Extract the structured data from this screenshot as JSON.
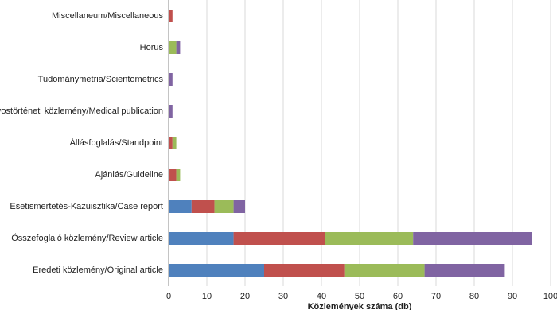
{
  "chart_data": {
    "type": "stacked-barh",
    "x_label": "Közlemények száma (db)",
    "categories": [
      "Eredeti közlemény/Original article",
      "Összefoglaló közlemény/Review article",
      "Esetismertetés-Kazuisztika/Case report",
      "Ajánlás/Guideline",
      "Állásfoglalás/Standpoint",
      "Orvostörténeti közlemény/Medical publication",
      "Tudománymetria/Scientometrics",
      "Horus",
      "Miscellaneum/Miscellaneous"
    ],
    "series": [
      {
        "color": "#4f81bd",
        "values": [
          25,
          17,
          6,
          0,
          0,
          0,
          0,
          0,
          0
        ]
      },
      {
        "color": "#c0504d",
        "values": [
          21,
          24,
          6,
          2,
          1,
          0,
          0,
          0,
          1
        ]
      },
      {
        "color": "#9bbb59",
        "values": [
          21,
          23,
          5,
          1,
          1,
          0,
          0,
          2,
          0
        ]
      },
      {
        "color": "#8064a2",
        "values": [
          21,
          31,
          3,
          0,
          0,
          1,
          1,
          1,
          0
        ]
      }
    ],
    "xlim": [
      0,
      100
    ],
    "xticks": [
      0,
      10,
      20,
      30,
      40,
      50,
      60,
      70,
      80,
      90,
      100
    ],
    "grid": true
  }
}
